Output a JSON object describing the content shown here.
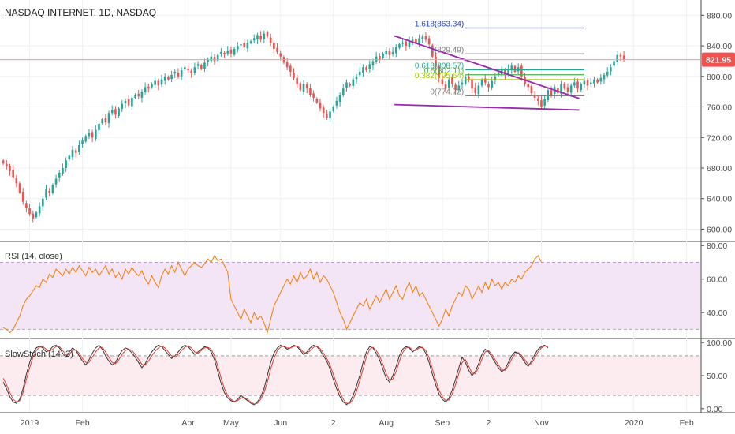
{
  "chart_data": [
    {
      "type": "candlestick",
      "title": "NASDAQ INTERNET, 1D, NASDAQ",
      "ylim": [
        585,
        900
      ],
      "y_ticks": [
        600,
        640,
        680,
        720,
        760,
        800,
        840,
        880
      ],
      "y_tick_labels": [
        "600.00",
        "640.00",
        "680.00",
        "720.00",
        "760.00",
        "800.00",
        "840.00",
        "880.00"
      ],
      "last_price": 821.95,
      "last_price_label": "821.95",
      "colors": {
        "up": "#26a69a",
        "down": "#ef5350",
        "trendline": "#9c27b0",
        "price_line": "#ef9a9a"
      },
      "x_labels": [
        "2019",
        "Feb",
        "Apr",
        "May",
        "Jun",
        "2",
        "Aug",
        "Sep",
        "2",
        "Nov",
        "2020",
        "Feb"
      ],
      "closes": [
        686,
        682,
        676,
        668,
        660,
        648,
        636,
        628,
        620,
        614,
        622,
        630,
        640,
        652,
        648,
        658,
        666,
        674,
        680,
        690,
        696,
        704,
        700,
        710,
        716,
        722,
        726,
        720,
        730,
        738,
        744,
        740,
        752,
        756,
        750,
        758,
        764,
        768,
        762,
        772,
        776,
        774,
        780,
        786,
        784,
        790,
        794,
        788,
        796,
        800,
        796,
        802,
        806,
        800,
        808,
        812,
        808,
        804,
        812,
        816,
        810,
        818,
        822,
        826,
        820,
        828,
        832,
        830,
        834,
        830,
        836,
        840,
        842,
        838,
        844,
        846,
        850,
        854,
        848,
        856,
        852,
        844,
        836,
        832,
        826,
        818,
        812,
        806,
        798,
        790,
        782,
        790,
        784,
        776,
        772,
        766,
        758,
        752,
        746,
        754,
        760,
        768,
        776,
        784,
        792,
        788,
        796,
        800,
        806,
        812,
        808,
        816,
        820,
        826,
        822,
        830,
        834,
        828,
        832,
        838,
        842,
        844,
        840,
        846,
        848,
        844,
        850,
        852,
        848,
        842,
        826,
        812,
        798,
        790,
        784,
        796,
        790,
        782,
        788,
        792,
        800,
        796,
        784,
        778,
        788,
        796,
        792,
        786,
        794,
        800,
        804,
        808,
        802,
        810,
        814,
        806,
        812,
        800,
        790,
        786,
        778,
        772,
        768,
        760,
        770,
        782,
        776,
        786,
        778,
        790,
        784,
        780,
        788,
        792,
        784,
        790,
        794,
        788,
        792,
        796,
        792,
        798,
        802,
        806,
        812,
        820,
        828,
        826,
        821.95
      ],
      "fib_levels": [
        {
          "label": "1.618(863.34)",
          "value": 863.34,
          "color": "#1e3fbf"
        },
        {
          "label": "1(829.49)",
          "value": 829.49,
          "color": "#808080"
        },
        {
          "label": "0.618(808.57)",
          "value": 808.57,
          "color": "#2ca58d"
        },
        {
          "label": "0.5(802.11)",
          "value": 802.11,
          "color": "#4caf50"
        },
        {
          "label": "0.382(795.64)",
          "value": 795.64,
          "color": "#a4c400"
        },
        {
          "label": "0(774.72)",
          "value": 774.72,
          "color": "#808080"
        }
      ],
      "trendlines": [
        {
          "from": [
            78.5,
            853
          ],
          "to": [
            124.5,
            771
          ]
        },
        {
          "from": [
            78.5,
            763
          ],
          "to": [
            124.5,
            756
          ]
        }
      ]
    },
    {
      "type": "line",
      "title": "RSI (14, close)",
      "ylim": [
        25,
        82
      ],
      "y_ticks": [
        40,
        60,
        80
      ],
      "y_tick_labels": [
        "40.00",
        "60.00",
        "80.00"
      ],
      "bands": [
        30,
        70
      ],
      "color": "#f57c00",
      "values": [
        31,
        30,
        28,
        30,
        34,
        38,
        44,
        48,
        50,
        53,
        56,
        55,
        60,
        58,
        63,
        61,
        66,
        64,
        62,
        66,
        63,
        67,
        64,
        68,
        65,
        62,
        67,
        64,
        66,
        62,
        65,
        68,
        63,
        66,
        61,
        64,
        60,
        66,
        63,
        67,
        64,
        62,
        65,
        60,
        57,
        62,
        58,
        55,
        62,
        66,
        63,
        68,
        64,
        70,
        66,
        62,
        66,
        68,
        70,
        68,
        67,
        69,
        72,
        70,
        74,
        71,
        72,
        68,
        64,
        48,
        44,
        40,
        36,
        42,
        38,
        34,
        40,
        36,
        38,
        34,
        28,
        36,
        44,
        48,
        52,
        56,
        60,
        57,
        62,
        58,
        64,
        60,
        62,
        66,
        60,
        64,
        58,
        62,
        60,
        56,
        52,
        46,
        40,
        36,
        30,
        34,
        38,
        42,
        46,
        44,
        48,
        42,
        46,
        50,
        46,
        50,
        54,
        48,
        52,
        56,
        50,
        48,
        54,
        58,
        52,
        56,
        50,
        52,
        48,
        44,
        40,
        36,
        32,
        36,
        42,
        38,
        44,
        48,
        52,
        50,
        56,
        54,
        48,
        52,
        56,
        52,
        58,
        54,
        60,
        56,
        58,
        54,
        58,
        56,
        60,
        58,
        62,
        60,
        64,
        66,
        68,
        72,
        74,
        70
      ]
    },
    {
      "type": "line",
      "title": "SlowStoch (14, 3)",
      "ylim": [
        -5,
        105
      ],
      "y_ticks": [
        0,
        50,
        100
      ],
      "y_tick_labels": [
        "0.00",
        "50.00",
        "100.00"
      ],
      "bands": [
        20,
        80
      ],
      "series": [
        {
          "color": "#333333",
          "values": [
            40,
            30,
            18,
            10,
            8,
            14,
            30,
            52,
            70,
            84,
            92,
            95,
            92,
            86,
            88,
            94,
            96,
            92,
            84,
            78,
            86,
            92,
            88,
            80,
            72,
            66,
            74,
            84,
            92,
            96,
            90,
            80,
            72,
            66,
            70,
            80,
            88,
            92,
            90,
            84,
            78,
            70,
            62,
            68,
            78,
            86,
            92,
            96,
            94,
            88,
            82,
            76,
            80,
            86,
            92,
            96,
            94,
            88,
            82,
            86,
            90,
            94,
            92,
            86,
            74,
            56,
            38,
            24,
            16,
            12,
            10,
            14,
            20,
            16,
            12,
            8,
            6,
            10,
            18,
            30,
            50,
            70,
            84,
            92,
            96,
            94,
            90,
            92,
            96,
            94,
            88,
            82,
            86,
            92,
            96,
            94,
            88,
            80,
            72,
            60,
            44,
            30,
            18,
            10,
            6,
            10,
            20,
            34,
            50,
            70,
            86,
            94,
            92,
            84,
            74,
            60,
            46,
            40,
            50,
            64,
            80,
            90,
            94,
            92,
            86,
            90,
            94,
            92,
            84,
            70,
            52,
            36,
            22,
            14,
            10,
            16,
            28,
            44,
            62,
            78,
            70,
            58,
            50,
            56,
            68,
            82,
            90,
            86,
            78,
            70,
            62,
            56,
            60,
            70,
            80,
            86,
            84,
            78,
            70,
            64,
            72,
            82,
            90,
            94,
            96,
            92
          ]
        },
        {
          "color": "#e53935",
          "values": [
            46,
            36,
            24,
            14,
            10,
            12,
            24,
            44,
            62,
            78,
            88,
            93,
            94,
            90,
            87,
            90,
            94,
            94,
            88,
            82,
            82,
            88,
            89,
            84,
            76,
            70,
            70,
            78,
            86,
            92,
            93,
            86,
            78,
            70,
            68,
            74,
            82,
            88,
            90,
            88,
            82,
            75,
            67,
            66,
            72,
            80,
            87,
            92,
            95,
            92,
            86,
            80,
            78,
            82,
            88,
            93,
            95,
            92,
            86,
            84,
            88,
            92,
            93,
            90,
            80,
            64,
            46,
            30,
            20,
            14,
            11,
            12,
            16,
            17,
            14,
            10,
            7,
            8,
            14,
            24,
            40,
            60,
            76,
            88,
            93,
            95,
            92,
            92,
            94,
            95,
            91,
            85,
            84,
            88,
            93,
            95,
            91,
            84,
            76,
            66,
            52,
            37,
            24,
            14,
            8,
            8,
            14,
            26,
            42,
            60,
            78,
            90,
            93,
            88,
            80,
            67,
            53,
            43,
            45,
            56,
            72,
            85,
            92,
            93,
            89,
            88,
            92,
            93,
            88,
            77,
            60,
            43,
            28,
            18,
            12,
            13,
            22,
            36,
            53,
            70,
            74,
            64,
            54,
            53,
            62,
            75,
            86,
            88,
            82,
            74,
            66,
            59,
            58,
            65,
            75,
            83,
            85,
            81,
            74,
            67,
            68,
            77,
            86,
            92,
            95,
            94
          ]
        }
      ]
    }
  ]
}
